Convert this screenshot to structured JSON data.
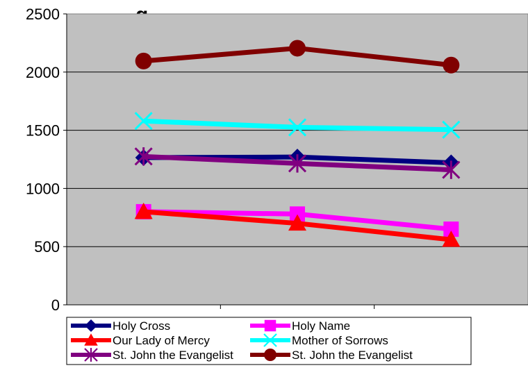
{
  "chart_data": {
    "type": "line",
    "title": "...g...",
    "categories": [
      "",
      "",
      ""
    ],
    "ylim": [
      0,
      2500
    ],
    "yticks": [
      0,
      500,
      1000,
      1500,
      2000,
      2500
    ],
    "grid": "horizontal",
    "plot_background": "#c0c0c0",
    "legend_position": "bottom",
    "series": [
      {
        "name": "Holy Cross",
        "values": [
          1265,
          1270,
          1220
        ],
        "color": "#000080",
        "marker": "diamond"
      },
      {
        "name": "Holy Name",
        "values": [
          800,
          780,
          650
        ],
        "color": "#ff00ff",
        "marker": "square"
      },
      {
        "name": "Our Lady of Mercy",
        "values": [
          800,
          700,
          560
        ],
        "color": "#ff0000",
        "marker": "triangle"
      },
      {
        "name": "Mother of Sorrows",
        "values": [
          1580,
          1525,
          1505
        ],
        "color": "#00ffff",
        "marker": "x"
      },
      {
        "name": "St. John the Evangelist",
        "values": [
          1275,
          1215,
          1160
        ],
        "color": "#800080",
        "marker": "star"
      },
      {
        "name": "St. John the Evangelist",
        "values": [
          2095,
          2205,
          2060
        ],
        "color": "#800000",
        "marker": "circle"
      }
    ]
  }
}
